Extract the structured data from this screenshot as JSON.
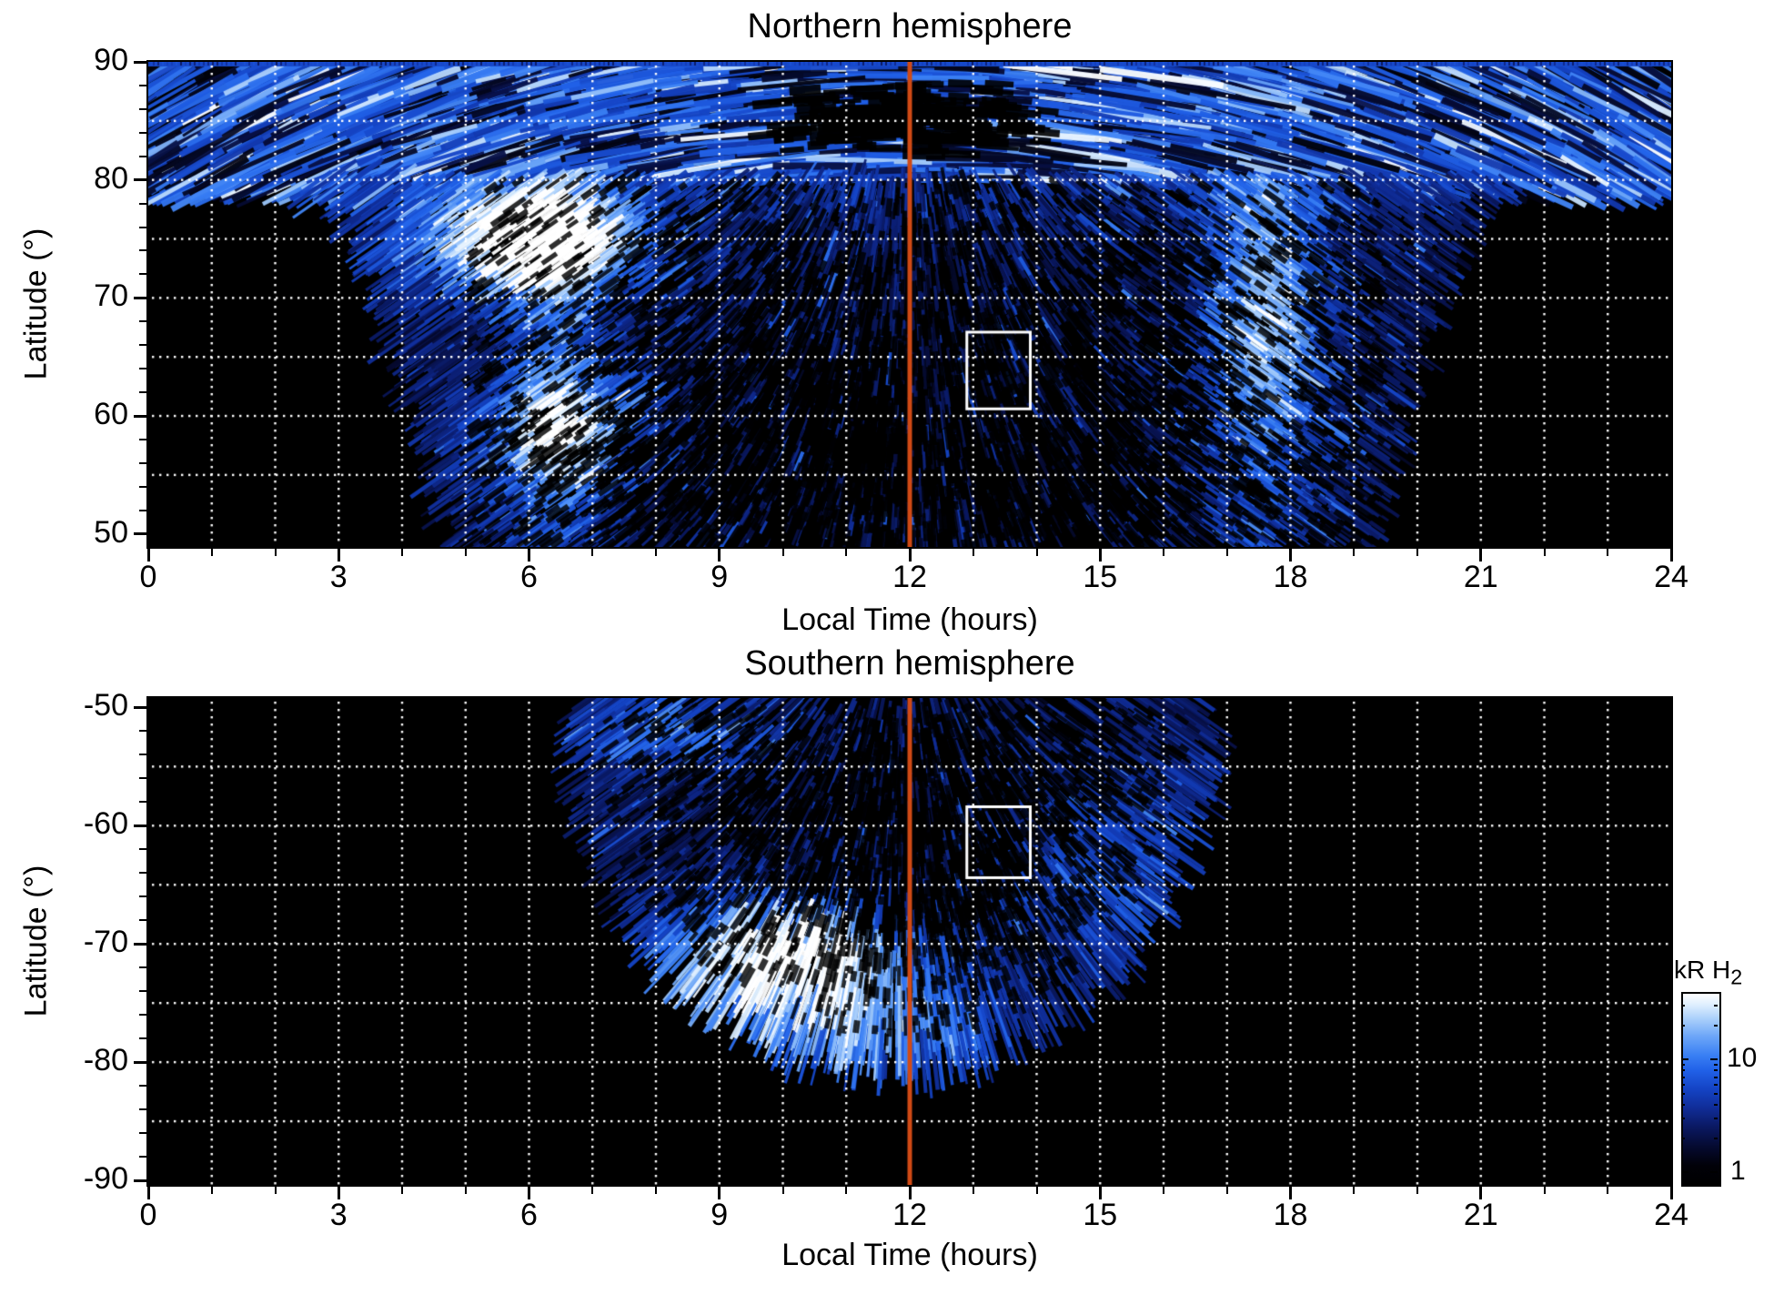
{
  "colors": {
    "background": "#ffffff",
    "no_data": "#000000",
    "meridian_line": "#d04a15",
    "roi_box_outline": "#ffffff",
    "grid_dots": "#ffffff",
    "axis": "#000000"
  },
  "colorbar": {
    "label": "kR H",
    "label_sub": "2",
    "scale": "log",
    "range": [
      0.8,
      40
    ],
    "unit_ticks": [
      {
        "value": 10,
        "label": "10"
      },
      {
        "value": 1,
        "label": "1"
      }
    ],
    "minor_tick_values": [
      2,
      3,
      4,
      5,
      6,
      7,
      8,
      9,
      20,
      30
    ],
    "stops": [
      {
        "t": 0.0,
        "c": "#000000"
      },
      {
        "t": 0.1,
        "c": "#010108"
      },
      {
        "t": 0.2,
        "c": "#050a30"
      },
      {
        "t": 0.3,
        "c": "#0a1860"
      },
      {
        "t": 0.4,
        "c": "#102c96"
      },
      {
        "t": 0.5,
        "c": "#1443c4"
      },
      {
        "t": 0.6,
        "c": "#2161e8"
      },
      {
        "t": 0.68,
        "c": "#3a80f4"
      },
      {
        "t": 0.78,
        "c": "#6ea7f8"
      },
      {
        "t": 0.87,
        "c": "#abd0fb"
      },
      {
        "t": 0.94,
        "c": "#ddeefe"
      },
      {
        "t": 1.0,
        "c": "#ffffff"
      }
    ]
  },
  "chart_data": [
    {
      "type": "heatmap",
      "hemisphere": "north",
      "title": "Northern hemisphere",
      "xlabel": "Local Time (hours)",
      "ylabel": "Latitude (°)",
      "xlim": [
        0,
        24
      ],
      "ylim": [
        48.9,
        90
      ],
      "xticks": {
        "major": [
          0,
          3,
          6,
          9,
          12,
          15,
          18,
          21,
          24
        ],
        "labels": [
          "0",
          "3",
          "6",
          "9",
          "12",
          "15",
          "18",
          "21",
          "24"
        ],
        "minor_step": 1,
        "grid_step": 1
      },
      "yticks": {
        "major": [
          90,
          80,
          70,
          60,
          50
        ],
        "labels": [
          "90",
          "80",
          "70",
          "60",
          "50"
        ],
        "minor_step": 2,
        "grid": [
          85,
          80,
          75,
          70,
          65,
          60,
          55
        ]
      },
      "meridian_line_hour": 12,
      "roi_box": {
        "lt": [
          12.9,
          13.9
        ],
        "lat": [
          60.6,
          67.1
        ]
      },
      "coverage": {
        "kind": "polar-band-plus-fan",
        "polar_band_min_lat": 80,
        "left_edge_lt_lat80": 2.5,
        "left_edge_lt_lat50": 4.95,
        "right_edge_lt_lat80": 21.7,
        "right_edge_lt_lat50": 19.25
      },
      "bright_features": [
        {
          "lt": 6.05,
          "lat": 74.8,
          "sigma_lt": 1.25,
          "sigma_lat": 3.1,
          "amp": 1.3
        },
        {
          "lt": 6.5,
          "lat": 59.0,
          "sigma_lt": 0.95,
          "sigma_lat": 4.0,
          "amp": 0.7
        },
        {
          "lt": 17.6,
          "lat": 68.0,
          "sigma_lt": 0.7,
          "sigma_lat": 8.0,
          "amp": 0.55
        }
      ],
      "dark_features": [
        {
          "lt": 11.9,
          "lat": 85.0,
          "sigma_lt": 1.8,
          "sigma_lat": 2.8
        }
      ],
      "texture": {
        "seed": 1234,
        "streaks": 16000,
        "dark_speckles": 6500,
        "band_streaks": 3000,
        "tilt_per_hour_deg": 6
      }
    },
    {
      "type": "heatmap",
      "hemisphere": "south",
      "title": "Southern hemisphere",
      "xlabel": "Local Time (hours)",
      "ylabel": "Latitude (°)",
      "xlim": [
        0,
        24
      ],
      "ylim": [
        -90.38,
        -49.2
      ],
      "xticks": {
        "major": [
          0,
          3,
          6,
          9,
          12,
          15,
          18,
          21,
          24
        ],
        "labels": [
          "0",
          "3",
          "6",
          "9",
          "12",
          "15",
          "18",
          "21",
          "24"
        ],
        "minor_step": 1,
        "grid_step": 1
      },
      "yticks": {
        "major": [
          -50,
          -60,
          -70,
          -80,
          -90
        ],
        "labels": [
          "-50",
          "-60",
          "-70",
          "-80",
          "-90"
        ],
        "minor_step": 2,
        "grid": [
          -55,
          -60,
          -65,
          -70,
          -75,
          -80,
          -85
        ]
      },
      "meridian_line_hour": 12,
      "roi_box": {
        "lt": [
          12.9,
          13.9
        ],
        "lat": [
          -64.4,
          -58.4
        ]
      },
      "coverage": {
        "kind": "dome",
        "dome_center_lt": 11.7,
        "dome_center_lat": -49.0,
        "dome_a_hours": 4.95,
        "dome_b_deg": 31.0
      },
      "bright_features": [
        {
          "lt": 10.0,
          "lat": -71.5,
          "sigma_lt": 1.35,
          "sigma_lat": 3.2,
          "amp": 1.25
        },
        {
          "lt": 8.2,
          "lat": -52.0,
          "sigma_lt": 1.1,
          "sigma_lat": 2.0,
          "amp": 0.5
        },
        {
          "lt": 11.7,
          "lat": -77.2,
          "sigma_lt": 1.3,
          "sigma_lat": 2.2,
          "amp": 0.6
        },
        {
          "lt": 15.3,
          "lat": -64.0,
          "sigma_lt": 1.6,
          "sigma_lat": 6.0,
          "amp": 0.3
        }
      ],
      "dark_features": [
        {
          "lt": 12.1,
          "lat": -56.0,
          "sigma_lt": 1.9,
          "sigma_lat": 5.5
        },
        {
          "lt": 12.6,
          "lat": -66.0,
          "sigma_lt": 1.2,
          "sigma_lat": 4.0
        }
      ],
      "texture": {
        "seed": 99,
        "streaks": 15000,
        "dark_speckles": 4200,
        "band_streaks": 0,
        "tilt_per_hour_deg": 4
      }
    }
  ]
}
